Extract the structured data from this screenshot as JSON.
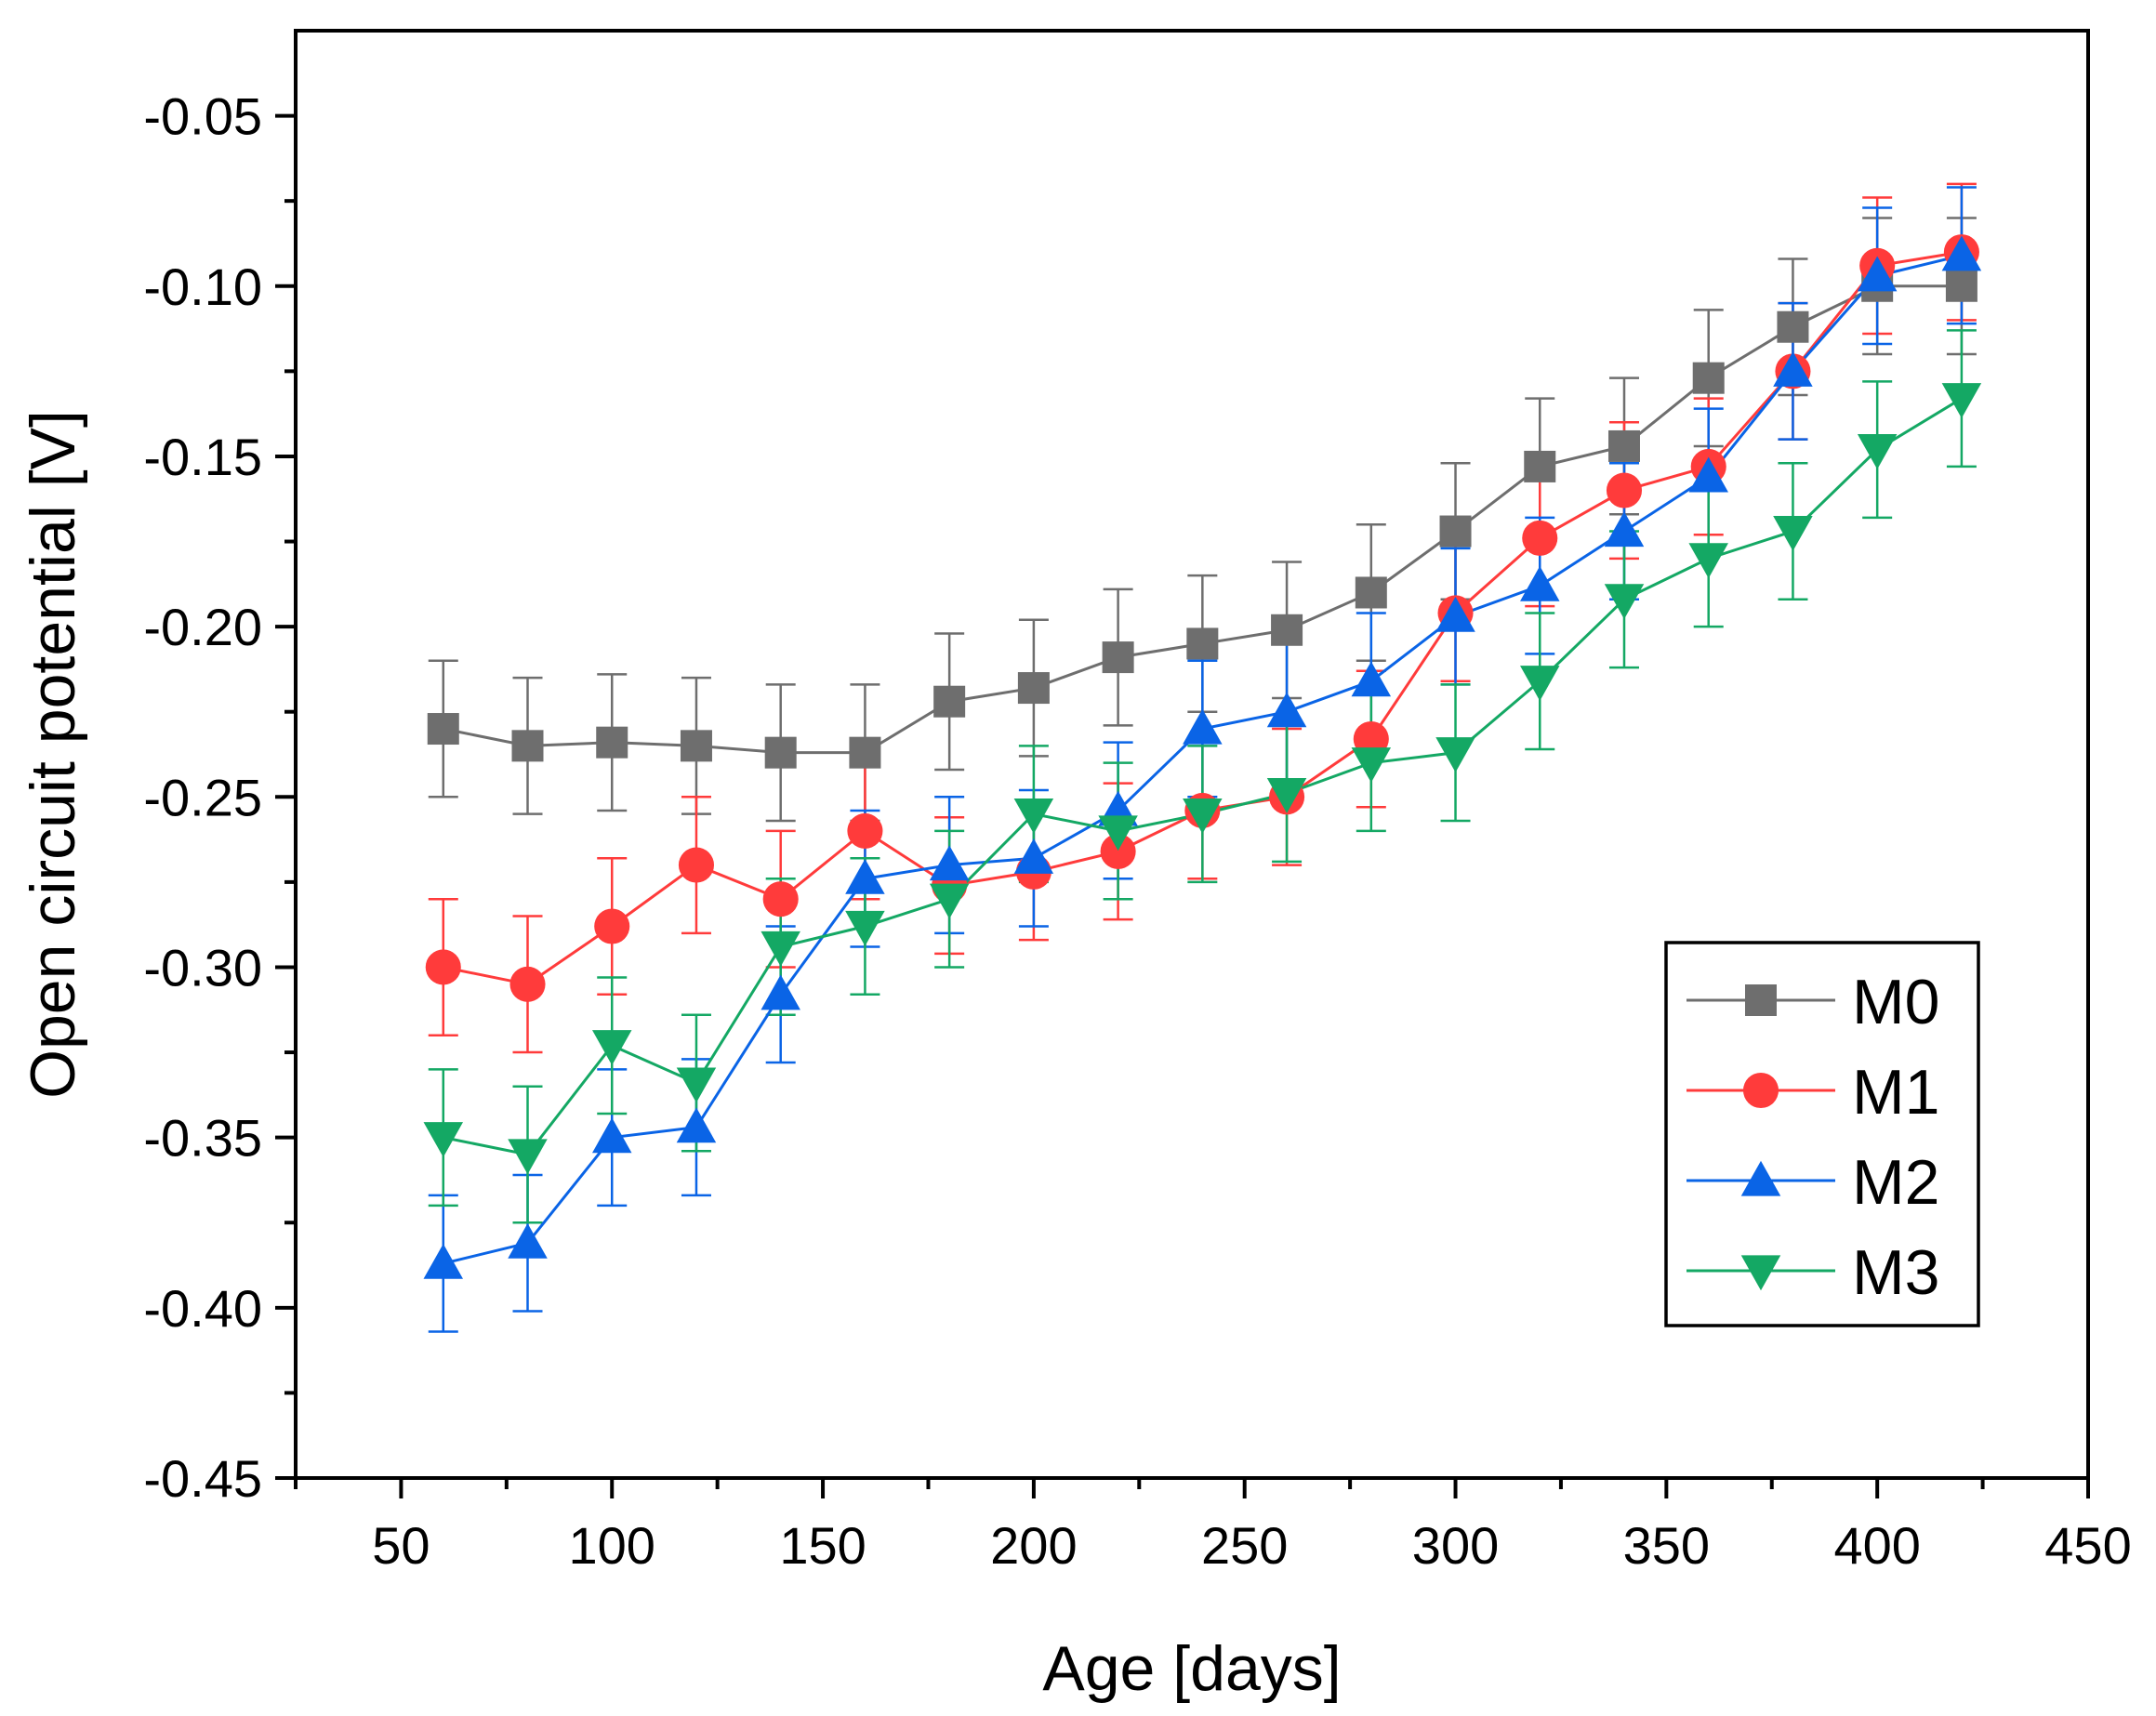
{
  "chart_data": {
    "type": "line",
    "title": "",
    "xlabel": "Age [days]",
    "ylabel": "Open circuit potential [V]",
    "xlim": [
      25,
      450
    ],
    "ylim": [
      -0.45,
      -0.025
    ],
    "xticks": [
      50,
      100,
      150,
      200,
      250,
      300,
      350,
      400,
      450
    ],
    "yticks": [
      -0.05,
      -0.1,
      -0.15,
      -0.2,
      -0.25,
      -0.3,
      -0.35,
      -0.4,
      -0.45
    ],
    "xtick_labels": [
      "50",
      "100",
      "150",
      "200",
      "250",
      "300",
      "350",
      "400",
      "450"
    ],
    "ytick_labels": [
      "-0.05",
      "-0.10",
      "-0.15",
      "-0.20",
      "-0.25",
      "-0.30",
      "-0.35",
      "-0.40",
      "-0.45"
    ],
    "x": [
      60,
      80,
      100,
      120,
      140,
      160,
      180,
      200,
      220,
      240,
      260,
      280,
      300,
      320,
      340,
      360,
      380,
      400,
      420
    ],
    "error": 0.02,
    "legend_position": "bottom-right",
    "series": [
      {
        "name": "M0",
        "color": "#6e6e6e",
        "marker": "square",
        "values": [
          -0.23,
          -0.235,
          -0.234,
          -0.235,
          -0.237,
          -0.237,
          -0.222,
          -0.218,
          -0.209,
          -0.205,
          -0.201,
          -0.19,
          -0.172,
          -0.153,
          -0.147,
          -0.127,
          -0.112,
          -0.1,
          -0.1
        ]
      },
      {
        "name": "M1",
        "color": "#ff3b3b",
        "marker": "circle",
        "values": [
          -0.3,
          -0.305,
          -0.288,
          -0.27,
          -0.28,
          -0.26,
          -0.276,
          -0.272,
          -0.266,
          -0.254,
          -0.25,
          -0.233,
          -0.196,
          -0.174,
          -0.16,
          -0.153,
          -0.125,
          -0.094,
          -0.09
        ]
      },
      {
        "name": "M2",
        "color": "#0a64e6",
        "marker": "triangle-up",
        "values": [
          -0.387,
          -0.381,
          -0.35,
          -0.347,
          -0.308,
          -0.274,
          -0.27,
          -0.268,
          -0.254,
          -0.23,
          -0.225,
          -0.216,
          -0.197,
          -0.188,
          -0.172,
          -0.156,
          -0.125,
          -0.097,
          -0.091
        ]
      },
      {
        "name": "M3",
        "color": "#14a864",
        "marker": "triangle-down",
        "values": [
          -0.35,
          -0.355,
          -0.323,
          -0.334,
          -0.294,
          -0.288,
          -0.28,
          -0.255,
          -0.26,
          -0.255,
          -0.249,
          -0.24,
          -0.237,
          -0.216,
          -0.192,
          -0.18,
          -0.172,
          -0.148,
          -0.133
        ]
      }
    ]
  }
}
